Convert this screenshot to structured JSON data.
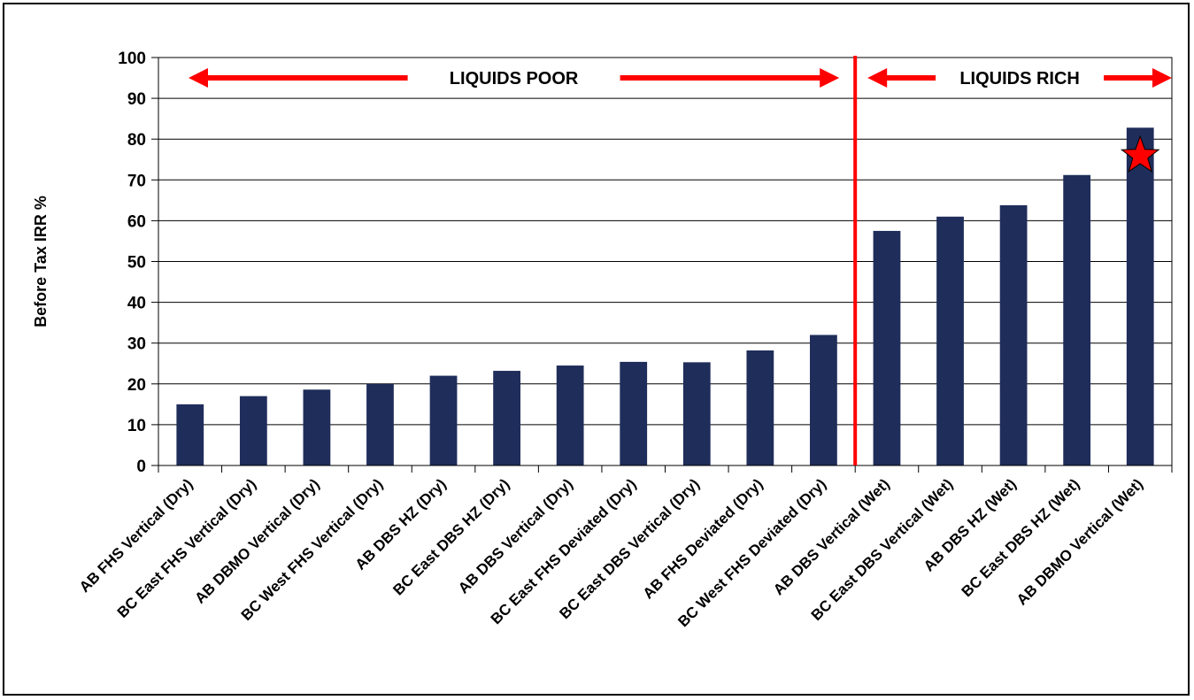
{
  "chart_data": {
    "type": "bar",
    "categories": [
      "AB FHS Vertical (Dry)",
      "BC East FHS Vertical (Dry)",
      "AB DBMO Vertical (Dry)",
      "BC West FHS Vertical (Dry)",
      "AB DBS HZ (Dry)",
      "BC East DBS HZ (Dry)",
      "AB DBS Vertical (Dry)",
      "BC East FHS Deviated (Dry)",
      "BC East DBS Vertical (Dry)",
      "AB FHS Deviated (Dry)",
      "BC West FHS Deviated (Dry)",
      "AB DBS Vertical (Wet)",
      "BC East DBS Vertical (Wet)",
      "AB DBS HZ (Wet)",
      "BC East DBS HZ (Wet)",
      "AB DBMO Vertical (Wet)"
    ],
    "values": [
      15,
      17,
      18.6,
      20,
      22,
      23.2,
      24.5,
      25.4,
      25.3,
      28.2,
      32,
      57.5,
      61,
      63.8,
      71.2,
      82.8
    ],
    "ylabel": "Before Tax IRR %",
    "ylim": [
      0,
      100
    ],
    "yticks": [
      0,
      10,
      20,
      30,
      40,
      50,
      60,
      70,
      80,
      90,
      100
    ],
    "grid": true,
    "bar_color": "#1F2D5A",
    "annotations": {
      "left_region_label": "LIQUIDS POOR",
      "right_region_label": "LIQUIDS RICH",
      "divider_after_category": 11,
      "arrow_color": "#FF0000",
      "star_on_category": 16,
      "star_color": "#FF0000"
    }
  }
}
